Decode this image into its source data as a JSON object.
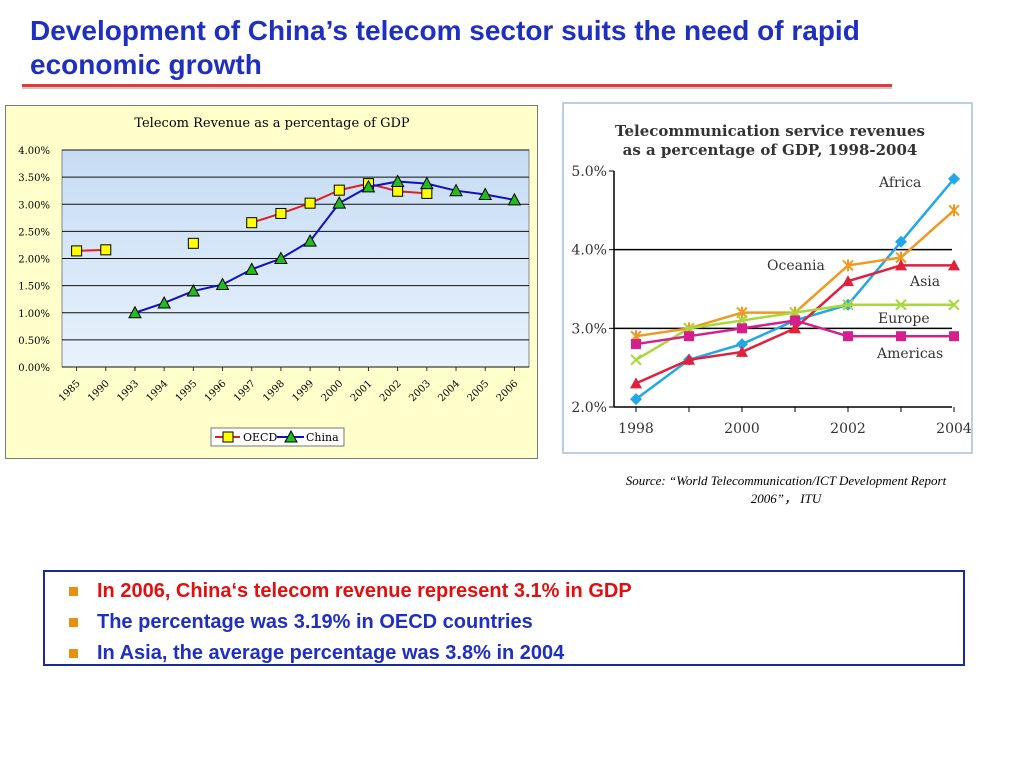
{
  "slide": {
    "title": "Development of China’s telecom sector suits the need of rapid economic growth",
    "source_line1": "Source: “World Telecommunication/ICT  Development Report",
    "source_line2": "2006”，  ITU",
    "bullets": [
      {
        "text": "In 2006, China‘s telecom revenue represent 3.1% in GDP",
        "color": "#e01010"
      },
      {
        "text": "The percentage was 3.19% in OECD countries",
        "color": "#1f2fbf"
      },
      {
        "text": "In Asia, the average percentage was 3.8% in 2004",
        "color": "#1f2fbf"
      }
    ],
    "bullet_marker_color": "#e8900f"
  },
  "chart_data": [
    {
      "type": "line",
      "title": "Telecom Revenue as a percentage of GDP",
      "categories": [
        "1985",
        "1990",
        "1993",
        "1994",
        "1995",
        "1996",
        "1997",
        "1998",
        "1999",
        "2000",
        "2001",
        "2002",
        "2003",
        "2004",
        "2005",
        "2006"
      ],
      "ylim": [
        0,
        4.0
      ],
      "yticks": [
        "0.00%",
        "0.50%",
        "1.00%",
        "1.50%",
        "2.00%",
        "2.50%",
        "3.00%",
        "3.50%",
        "4.00%"
      ],
      "series": [
        {
          "name": "OECD",
          "color": "#e02020",
          "marker_color": "#ffff00",
          "values": [
            2.14,
            2.16,
            null,
            null,
            2.28,
            null,
            2.66,
            2.83,
            3.02,
            3.26,
            3.38,
            3.24,
            3.2,
            null,
            null,
            null
          ]
        },
        {
          "name": "China",
          "color": "#1010c0",
          "marker_color": "#22bb22",
          "values": [
            null,
            null,
            1.0,
            1.18,
            1.4,
            1.52,
            1.8,
            2.0,
            2.32,
            3.02,
            3.32,
            3.42,
            3.38,
            3.25,
            3.18,
            3.08
          ]
        }
      ],
      "legend": "bottom-center",
      "grid": true,
      "plot_background": "#c6dcf4"
    },
    {
      "type": "line",
      "title": "Telecommunication service revenues as a percentage of GDP, 1998-2004",
      "title_line1": "Telecommunication service revenues",
      "title_line2": "as a percentage of GDP, 1998-2004",
      "x": [
        1998,
        1999,
        2000,
        2001,
        2002,
        2003,
        2004
      ],
      "xticks": [
        "1998",
        "2000",
        "2002",
        "2004"
      ],
      "ylim": [
        2.0,
        5.0
      ],
      "yticks": [
        "2.0%",
        "3.0%",
        "4.0%",
        "5.0%"
      ],
      "series": [
        {
          "name": "Africa",
          "color": "#22a8e6",
          "marker": "diamond",
          "values": [
            2.1,
            2.6,
            2.8,
            3.1,
            3.3,
            4.1,
            4.9
          ]
        },
        {
          "name": "Oceania",
          "color": "#ee9a22",
          "marker": "star",
          "values": [
            2.9,
            3.0,
            3.2,
            3.2,
            3.8,
            3.9,
            4.5
          ]
        },
        {
          "name": "Asia",
          "color": "#e0203c",
          "marker": "triangle",
          "values": [
            2.3,
            2.6,
            2.7,
            3.0,
            3.6,
            3.8,
            3.8
          ]
        },
        {
          "name": "Europe",
          "color": "#a8d83a",
          "marker": "x",
          "values": [
            2.6,
            3.0,
            3.1,
            3.2,
            3.3,
            3.3,
            3.3
          ]
        },
        {
          "name": "Americas",
          "color": "#d4208c",
          "marker": "square",
          "values": [
            2.8,
            2.9,
            3.0,
            3.1,
            2.9,
            2.9,
            2.9
          ]
        }
      ],
      "grid": false,
      "reference_lines": [
        3.0,
        4.0
      ]
    }
  ]
}
